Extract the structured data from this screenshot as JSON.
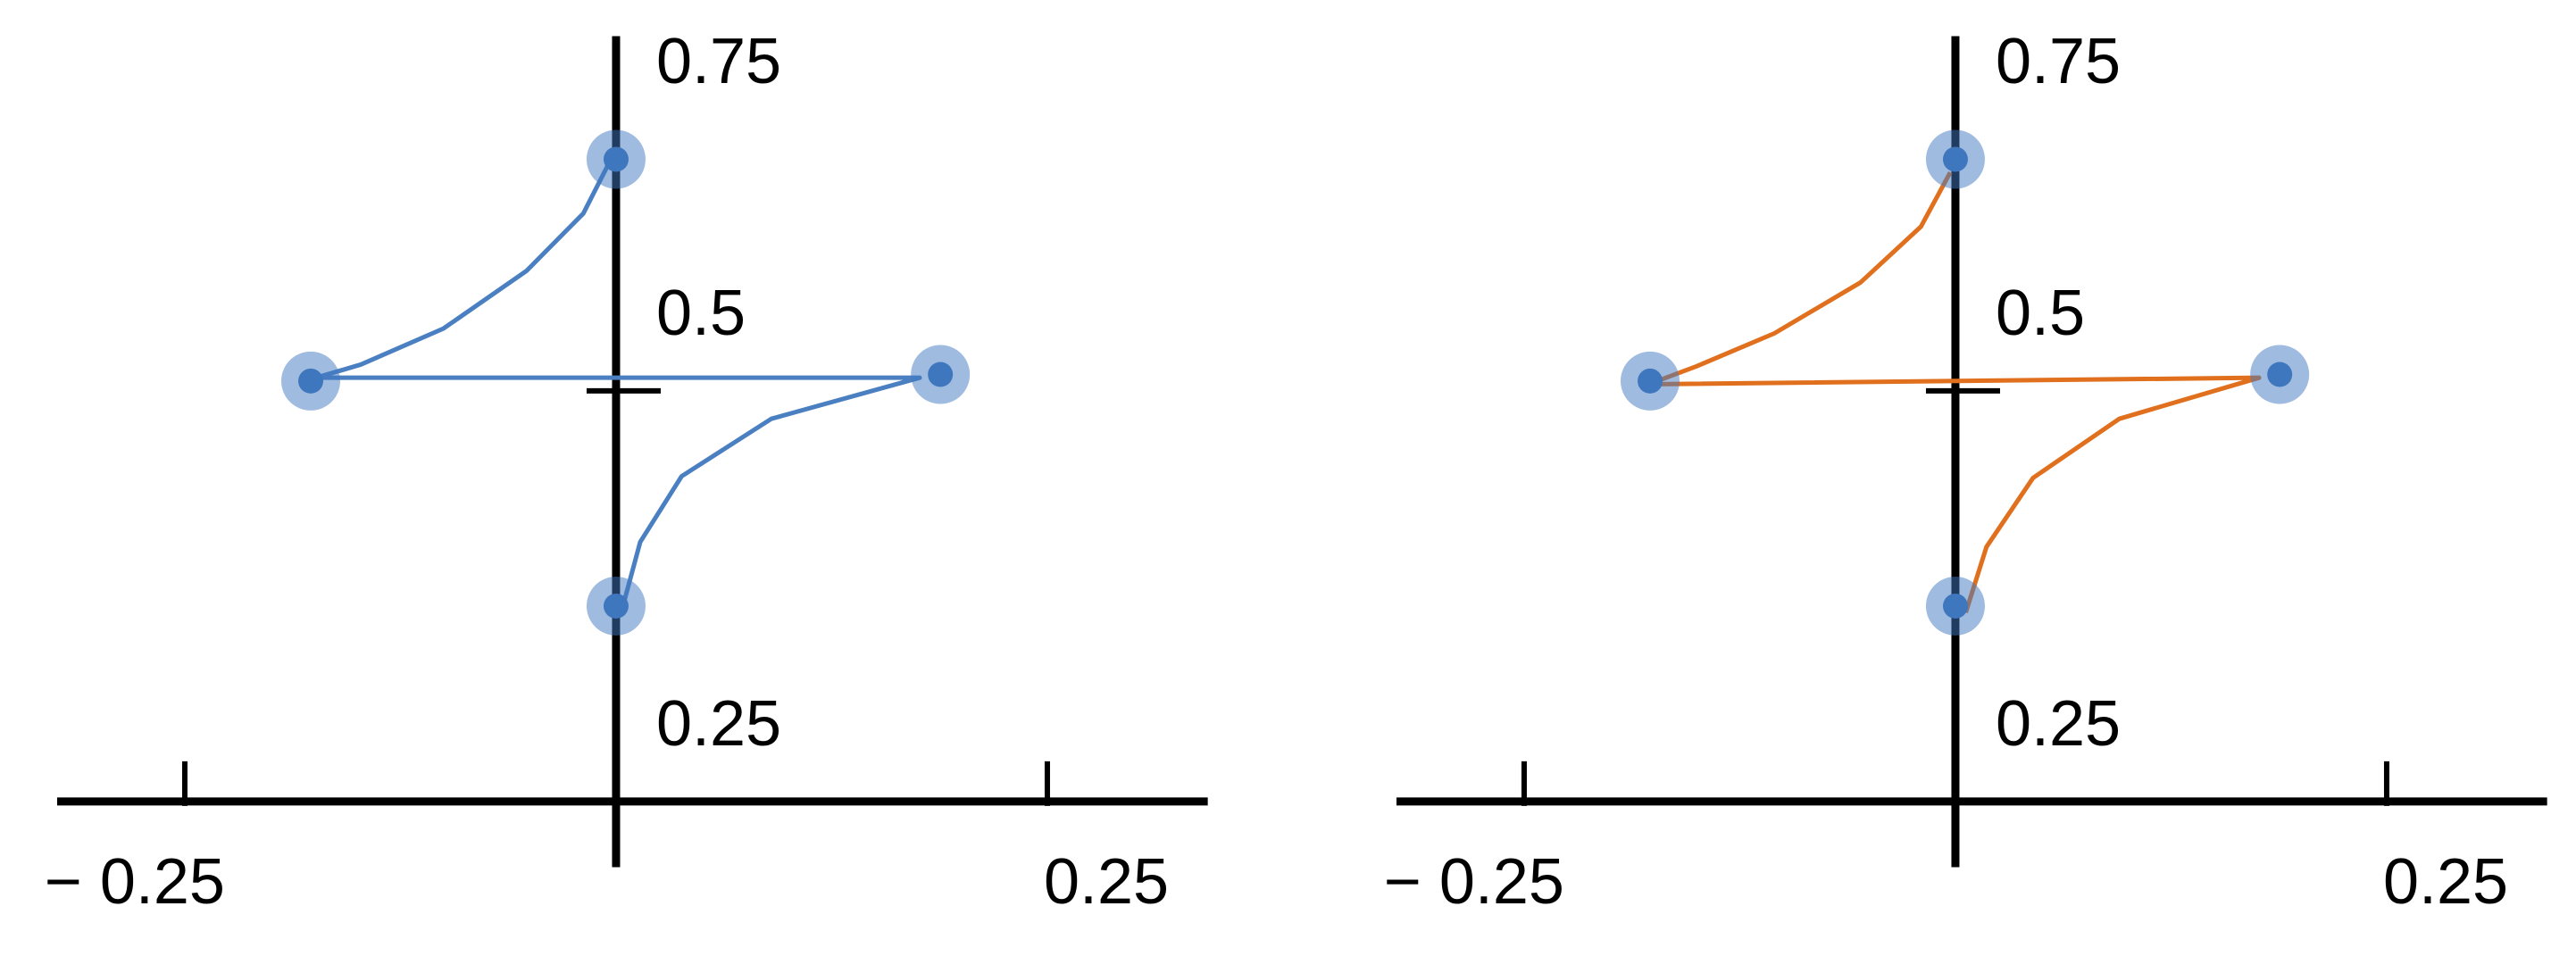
{
  "chart_data": [
    {
      "type": "line",
      "color": "#4a7fc1",
      "point_color": "#3f77bf",
      "x": [
        -0.003,
        -0.019,
        -0.052,
        -0.1,
        -0.148,
        -0.174,
        0.176,
        0.09,
        0.038,
        0.014,
        0.005
      ],
      "y": [
        0.641,
        0.608,
        0.573,
        0.538,
        0.516,
        0.508,
        0.508,
        0.483,
        0.448,
        0.408,
        0.373
      ],
      "points": {
        "x": [
          0,
          -0.177,
          0.188,
          0
        ],
        "y": [
          0.641,
          0.506,
          0.51,
          0.369
        ]
      },
      "xlim": [
        -0.324,
        0.343
      ],
      "ylim": [
        0.21,
        0.716
      ],
      "axes_origin": [
        0,
        0.25
      ],
      "xticks": [
        {
          "value": -0.25,
          "label": "− 0.25"
        },
        0.25
      ],
      "yticks": [
        0.25,
        0.5,
        0.75
      ]
    },
    {
      "type": "line",
      "color": "#e0701e",
      "point_color": "#3f77bf",
      "x": [
        -0.003,
        -0.02,
        -0.055,
        -0.105,
        -0.15,
        -0.178,
        0.176,
        0.095,
        0.045,
        0.018,
        0.006
      ],
      "y": [
        0.633,
        0.6,
        0.566,
        0.535,
        0.515,
        0.504,
        0.508,
        0.483,
        0.447,
        0.405,
        0.365
      ],
      "points": {
        "x": [
          0,
          -0.177,
          0.188,
          0
        ],
        "y": [
          0.641,
          0.506,
          0.51,
          0.369
        ]
      },
      "xlim": [
        -0.324,
        0.343
      ],
      "ylim": [
        0.21,
        0.716
      ],
      "axes_origin": [
        0,
        0.25
      ],
      "xticks": [
        {
          "value": -0.25,
          "label": "− 0.25"
        },
        0.25
      ],
      "yticks": [
        0.25,
        0.5,
        0.75
      ]
    }
  ]
}
